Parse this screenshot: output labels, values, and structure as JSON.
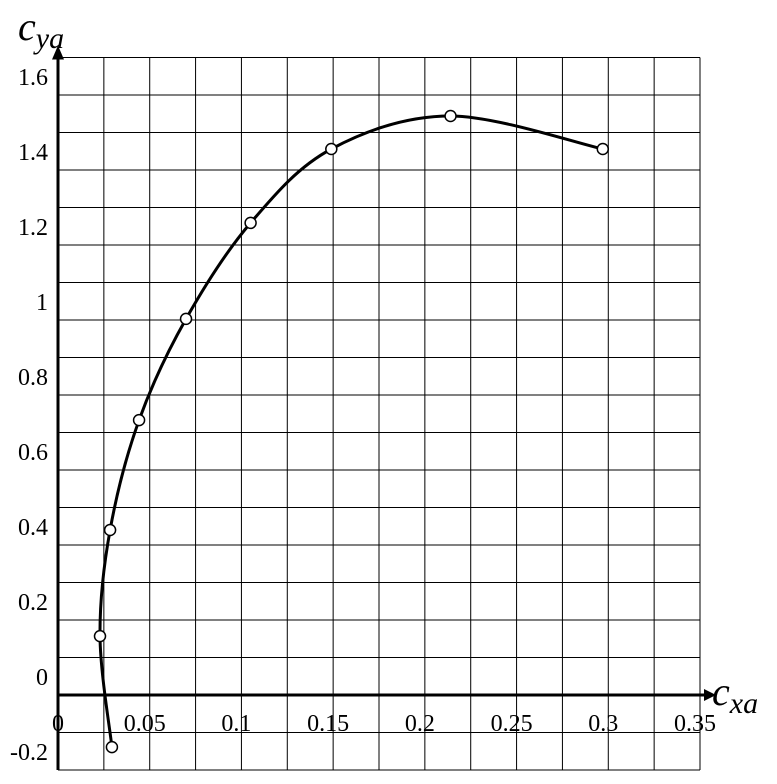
{
  "chart_data": {
    "type": "line",
    "xlabel": {
      "symbol": "c",
      "subscript": "xa"
    },
    "ylabel": {
      "symbol": "c",
      "subscript": "ya"
    },
    "x": [
      0.0294,
      0.0229,
      0.0284,
      0.0442,
      0.0698,
      0.105,
      0.149,
      0.214,
      0.297
    ],
    "series": [
      {
        "color": "#000000",
        "values": [
          -0.139,
          0.157,
          0.44,
          0.733,
          1.003,
          1.259,
          1.456,
          1.544,
          1.456
        ]
      }
    ],
    "xlim": [
      0,
      0.35
    ],
    "ylim": [
      -0.2,
      1.7
    ],
    "xticks": [
      0,
      0.05,
      0.1,
      0.15,
      0.2,
      0.25,
      0.3,
      0.35
    ],
    "yticks": [
      -0.2,
      0,
      0.2,
      0.4,
      0.6,
      0.8,
      1,
      1.2,
      1.4,
      1.6
    ],
    "grid": true
  }
}
